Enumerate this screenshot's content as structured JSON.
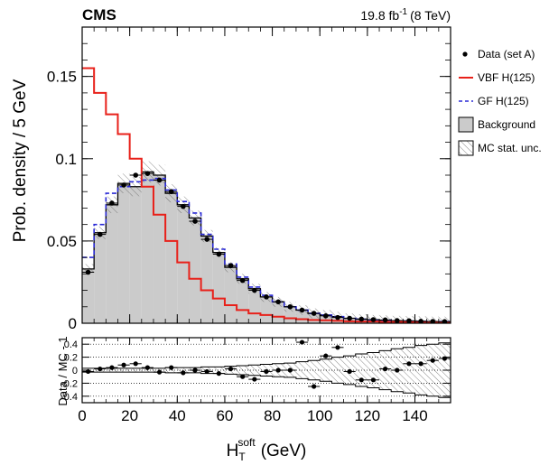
{
  "chart_data": [
    {
      "type": "step",
      "panel": "main",
      "experiment_label": "CMS",
      "lumi_label": "19.8 fb",
      "lumi_exp": "-1",
      "energy_label": "(8 TeV)",
      "ylabel": "Prob. density / 5 GeV",
      "xlim": [
        0,
        155
      ],
      "ylim": [
        0,
        0.18
      ],
      "bin_width": 5,
      "x_ticks": [
        "0",
        "20",
        "40",
        "60",
        "80",
        "100",
        "120",
        "140"
      ],
      "y_ticks": [
        "0",
        "0.05",
        "0.1",
        "0.15"
      ],
      "bin_centers": [
        2.5,
        7.5,
        12.5,
        17.5,
        22.5,
        27.5,
        32.5,
        37.5,
        42.5,
        47.5,
        52.5,
        57.5,
        62.5,
        67.5,
        72.5,
        77.5,
        82.5,
        87.5,
        92.5,
        97.5,
        102.5,
        107.5,
        112.5,
        117.5,
        122.5,
        127.5,
        132.5,
        137.5,
        142.5,
        147.5,
        152.5
      ],
      "legend": {
        "placement": "right",
        "entries": [
          {
            "label": "Data (set A)",
            "style": "marker"
          },
          {
            "label": "VBF H(125)",
            "style": "line",
            "color": "#e8211a"
          },
          {
            "label": "GF H(125)",
            "style": "dashed",
            "color": "#2a2ad6"
          },
          {
            "label": "Background",
            "style": "fill",
            "color": "#cbcbcb"
          },
          {
            "label": "MC stat. unc.",
            "style": "hatch"
          }
        ]
      },
      "series": [
        {
          "name": "Background",
          "color": "#cbcbcb",
          "values": [
            0.033,
            0.055,
            0.072,
            0.085,
            0.083,
            0.092,
            0.09,
            0.079,
            0.072,
            0.064,
            0.053,
            0.043,
            0.034,
            0.027,
            0.021,
            0.016,
            0.013,
            0.01,
            0.008,
            0.006,
            0.005,
            0.004,
            0.003,
            0.0025,
            0.002,
            0.0018,
            0.0015,
            0.0013,
            0.0012,
            0.001,
            0.001
          ]
        },
        {
          "name": "VBF H(125)",
          "color": "#e8211a",
          "values": [
            0.155,
            0.14,
            0.127,
            0.115,
            0.1,
            0.083,
            0.066,
            0.05,
            0.037,
            0.027,
            0.02,
            0.015,
            0.011,
            0.008,
            0.006,
            0.005,
            0.004,
            0.003,
            0.0025,
            0.002,
            0.0018,
            0.0015,
            0.0012,
            0.001,
            0.001,
            0.0008,
            0.0008,
            0.0007,
            0.0006,
            0.0005,
            0.0005
          ]
        },
        {
          "name": "GF H(125)",
          "color": "#2a2ad6",
          "values": [
            0.04,
            0.06,
            0.079,
            0.083,
            0.086,
            0.087,
            0.088,
            0.081,
            0.074,
            0.067,
            0.054,
            0.045,
            0.036,
            0.028,
            0.022,
            0.017,
            0.013,
            0.01,
            0.008,
            0.006,
            0.005,
            0.004,
            0.003,
            0.0025,
            0.002,
            0.0018,
            0.0015,
            0.0013,
            0.0011,
            0.001,
            0.001
          ]
        },
        {
          "name": "Data (set A)",
          "color": "#000000",
          "values": [
            0.031,
            0.054,
            0.073,
            0.084,
            0.09,
            0.091,
            0.087,
            0.08,
            0.071,
            0.062,
            0.051,
            0.042,
            0.035,
            0.026,
            0.02,
            0.016,
            0.013,
            0.01,
            0.008,
            0.006,
            0.0045,
            0.0035,
            0.003,
            0.0025,
            0.0022,
            0.002,
            0.0016,
            0.0015,
            0.0012,
            0.0011,
            0.001
          ]
        }
      ]
    },
    {
      "type": "ratio",
      "panel": "ratio",
      "xlabel": "H",
      "xlabel_sub": "T",
      "xlabel_sup": "soft",
      "xlabel_unit": "(GeV)",
      "ylabel": "Data / MC - 1",
      "xlim": [
        0,
        155
      ],
      "ylim": [
        -0.5,
        0.5
      ],
      "y_ticks": [
        "-0.4",
        "-0.2",
        "0",
        "0.2",
        "0.4"
      ],
      "x_ticks": [
        "0",
        "20",
        "40",
        "60",
        "80",
        "100",
        "120",
        "140"
      ],
      "values": [
        -0.02,
        0.02,
        0.04,
        0.08,
        0.1,
        0.04,
        -0.03,
        0.04,
        -0.04,
        0.0,
        -0.02,
        -0.05,
        0.02,
        -0.1,
        -0.14,
        -0.02,
        0.0,
        0.0,
        0.43,
        -0.25,
        0.22,
        0.35,
        -0.02,
        -0.15,
        -0.15,
        0.02,
        0.0,
        0.1,
        0.1,
        0.15,
        0.18
      ],
      "uncertainty": [
        0.03,
        0.03,
        0.03,
        0.03,
        0.03,
        0.03,
        0.03,
        0.04,
        0.04,
        0.04,
        0.05,
        0.05,
        0.06,
        0.07,
        0.08,
        0.09,
        0.1,
        0.11,
        0.13,
        0.15,
        0.17,
        0.2,
        0.22,
        0.25,
        0.27,
        0.3,
        0.33,
        0.35,
        0.38,
        0.4,
        0.42
      ]
    }
  ]
}
